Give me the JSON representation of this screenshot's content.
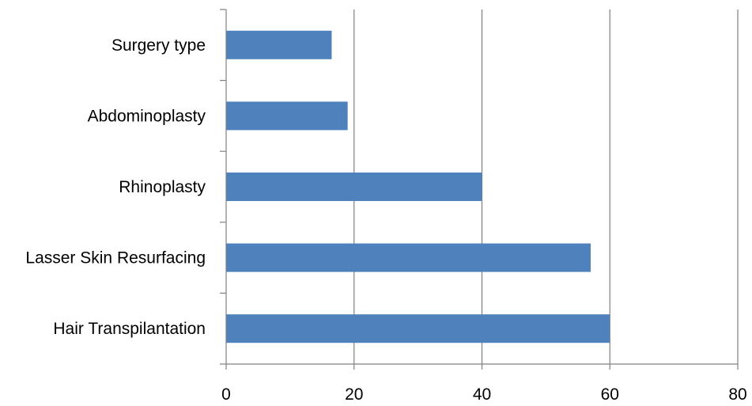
{
  "chart_data": {
    "type": "bar",
    "orientation": "horizontal",
    "categories": [
      "Surgery type",
      "Abdominoplasty",
      "Rhinoplasty",
      "Lasser Skin Resurfacing",
      "Hair Transpilantation"
    ],
    "values": [
      16.5,
      19,
      40,
      57,
      60
    ],
    "title": "",
    "xlabel": "",
    "ylabel": "",
    "xlim": [
      0,
      80
    ],
    "xticks": [
      "0",
      "20",
      "40",
      "60",
      "80"
    ],
    "grid": "vertical",
    "legend": "none",
    "colors": {
      "bar": "#4f81bd",
      "grid": "#808080",
      "axis": "#808080"
    }
  }
}
